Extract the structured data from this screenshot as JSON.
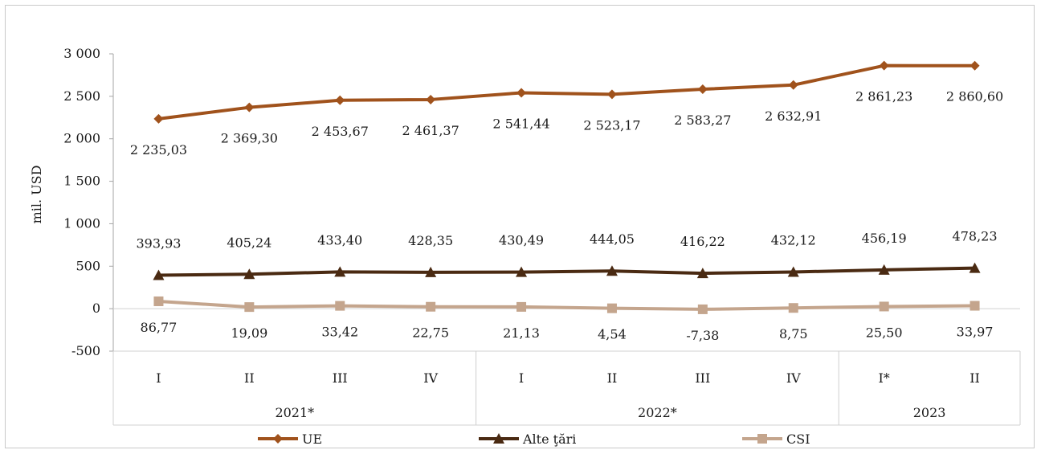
{
  "chart_data": {
    "type": "line",
    "ylabel": "mil. USD",
    "ylim": [
      -500,
      3000
    ],
    "yticks": [
      -500,
      0,
      500,
      1000,
      1500,
      2000,
      2500,
      3000
    ],
    "ytick_labels": [
      "-500",
      "0",
      "500",
      "1 000",
      "1 500",
      "2 000",
      "2 500",
      "3 000"
    ],
    "categories": [
      "I",
      "II",
      "III",
      "IV",
      "I",
      "II",
      "III",
      "IV",
      "I*",
      "II"
    ],
    "groups": [
      {
        "label": "2021*",
        "count": 4
      },
      {
        "label": "2022*",
        "count": 4
      },
      {
        "label": "2023",
        "count": 2
      }
    ],
    "grid": false,
    "legend_position": "bottom",
    "series": [
      {
        "name": "UE",
        "color": "#a0521c",
        "marker": "diamond",
        "values": [
          2235.03,
          2369.3,
          2453.67,
          2461.37,
          2541.44,
          2523.17,
          2583.27,
          2632.91,
          2861.23,
          2860.6
        ],
        "labels": [
          "2 235,03",
          "2 369,30",
          "2 453,67",
          "2 461,37",
          "2 541,44",
          "2 523,17",
          "2 583,27",
          "2 632,91",
          "2 861,23",
          "2 860,60"
        ]
      },
      {
        "name": "Alte ţări",
        "color": "#4a2a12",
        "marker": "triangle",
        "values": [
          393.93,
          405.24,
          433.4,
          428.35,
          430.49,
          444.05,
          416.22,
          432.12,
          456.19,
          478.23
        ],
        "labels": [
          "393,93",
          "405,24",
          "433,40",
          "428,35",
          "430,49",
          "444,05",
          "416,22",
          "432,12",
          "456,19",
          "478,23"
        ]
      },
      {
        "name": "CSI",
        "color": "#c4a58d",
        "marker": "square",
        "values": [
          86.77,
          19.09,
          33.42,
          22.75,
          21.13,
          4.54,
          -7.38,
          8.75,
          25.5,
          33.97
        ],
        "labels": [
          "86,77",
          "19,09",
          "33,42",
          "22,75",
          "21,13",
          "4,54",
          "-7,38",
          "8,75",
          "25,50",
          "33,97"
        ]
      }
    ]
  }
}
